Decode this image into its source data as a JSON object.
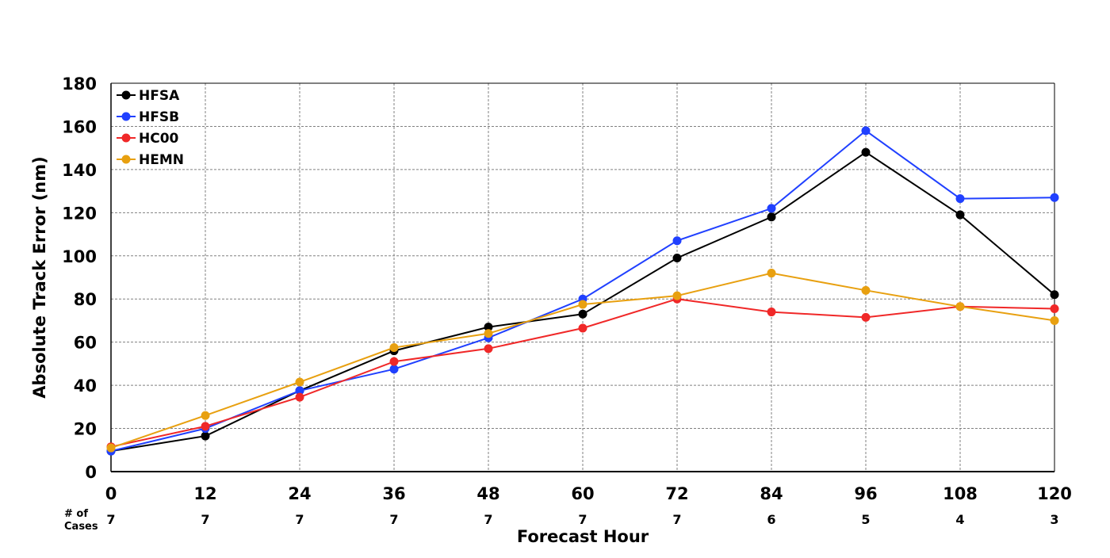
{
  "chart_data": {
    "type": "line",
    "title": "",
    "xlabel": "Forecast Hour",
    "ylabel": "Absolute Track Error (nm)",
    "x": [
      0,
      12,
      24,
      36,
      48,
      60,
      72,
      84,
      96,
      108,
      120
    ],
    "x_tick_labels": [
      "0",
      "12",
      "24",
      "36",
      "48",
      "60",
      "72",
      "84",
      "96",
      "108",
      "120"
    ],
    "xlim": [
      0,
      120
    ],
    "ylim": [
      0,
      180
    ],
    "y_ticks": [
      0,
      20,
      40,
      60,
      80,
      100,
      120,
      140,
      160,
      180
    ],
    "grid": true,
    "legend_position": "top-left",
    "series": [
      {
        "name": "HFSA",
        "color": "#000000",
        "values": [
          9.5,
          16.5,
          37.5,
          56,
          67,
          73,
          99,
          118,
          148,
          119,
          82
        ]
      },
      {
        "name": "HFSB",
        "color": "#2040ff",
        "values": [
          9.5,
          20,
          37.5,
          47.5,
          62,
          80,
          107,
          122,
          158,
          126.5,
          127
        ]
      },
      {
        "name": "HC00",
        "color": "#f02828",
        "values": [
          11.5,
          21,
          34.5,
          51,
          57,
          66.5,
          80,
          74,
          71.5,
          76.5,
          75.5
        ]
      },
      {
        "name": "HEMN",
        "color": "#e8a010",
        "values": [
          11,
          26,
          41.5,
          57.5,
          64,
          77.5,
          81.5,
          92,
          84,
          76.5,
          70
        ]
      }
    ],
    "cases": {
      "label_line1": "# of",
      "label_line2": "Cases",
      "values": [
        "7",
        "7",
        "7",
        "7",
        "7",
        "7",
        "7",
        "6",
        "5",
        "4",
        "3"
      ]
    }
  }
}
